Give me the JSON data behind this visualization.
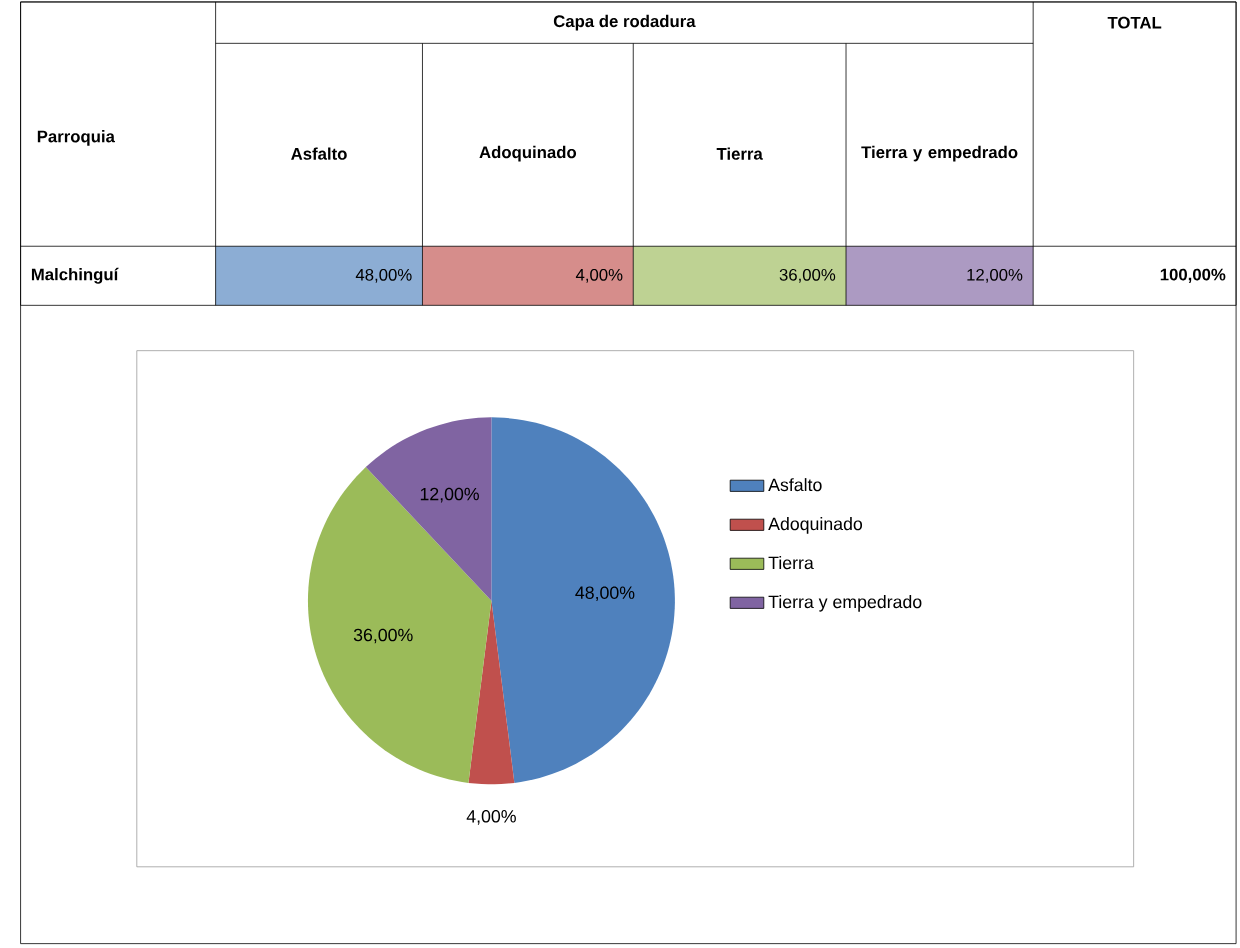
{
  "chart_data": {
    "type": "pie",
    "categories": [
      "Asfalto",
      "Adoquinado",
      "Tierra",
      "Tierra y empedrado"
    ],
    "values": [
      48,
      4,
      36,
      12
    ],
    "value_labels": [
      "48,00%",
      "4,00%",
      "36,00%",
      "12,00%"
    ],
    "colors": [
      "#4f81bd",
      "#c0504d",
      "#9bbb59",
      "#8064a2"
    ],
    "legend": "right",
    "annotations": [
      "Parroquia",
      "Capa de rodadura",
      "TOTAL",
      "Malchinguí",
      "100,00%",
      "48,00%",
      "4,00%",
      "36,00%",
      "12,00%"
    ]
  }
}
